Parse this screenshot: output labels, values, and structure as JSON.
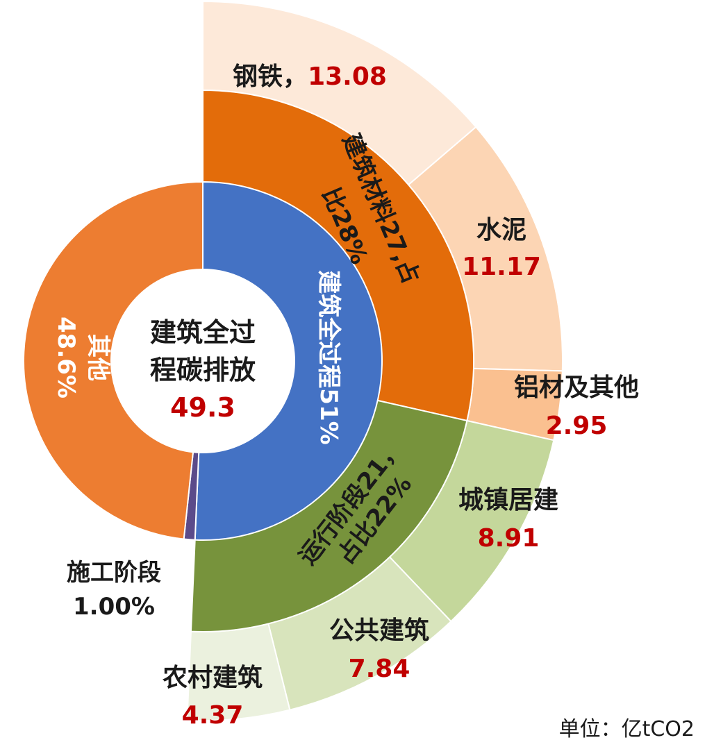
{
  "chart_data": {
    "type": "sunburst",
    "unit_label": "单位：亿tCO2",
    "center": {
      "title_line1": "建筑全过",
      "title_line2": "程碳排放",
      "value": "49.3"
    },
    "inner": [
      {
        "name": "建筑全过程51%",
        "value": 51.0,
        "color": "#4472C4"
      },
      {
        "name": "施工阶段",
        "value": 1.0,
        "color": "#5B4B8A",
        "label_line2": "1.00%"
      },
      {
        "name": "其他",
        "value": 48.6,
        "color": "#ED7D31",
        "label_line2": "48.6%"
      }
    ],
    "middle": [
      {
        "name_line1": "建筑材料27,占",
        "name_line2": "比28%",
        "value": 27.2,
        "color": "#E36C0A"
      },
      {
        "name_line1": "运行阶段21，",
        "name_line2": "占比22%",
        "value": 21.12,
        "color": "#77933C"
      }
    ],
    "outer": [
      {
        "name": "钢铁，",
        "value": 13.08,
        "value_label": "13.08",
        "color": "#FDE9D9"
      },
      {
        "name": "水泥",
        "value": 11.17,
        "value_label": "11.17",
        "color": "#FCD5B4"
      },
      {
        "name": "铝材及其他",
        "value": 2.95,
        "value_label": "2.95",
        "color": "#FAC090"
      },
      {
        "name": "城镇居建",
        "value": 8.91,
        "value_label": "8.91",
        "color": "#C4D79B"
      },
      {
        "name": "公共建筑",
        "value": 7.84,
        "value_label": "7.84",
        "color": "#D8E4BC"
      },
      {
        "name": "农村建筑",
        "value": 4.37,
        "value_label": "4.37",
        "color": "#EBF1DE"
      }
    ],
    "colors": {
      "value_text": "#C00000",
      "dark_text": "#1a1a1a",
      "white_text": "#ffffff"
    }
  }
}
